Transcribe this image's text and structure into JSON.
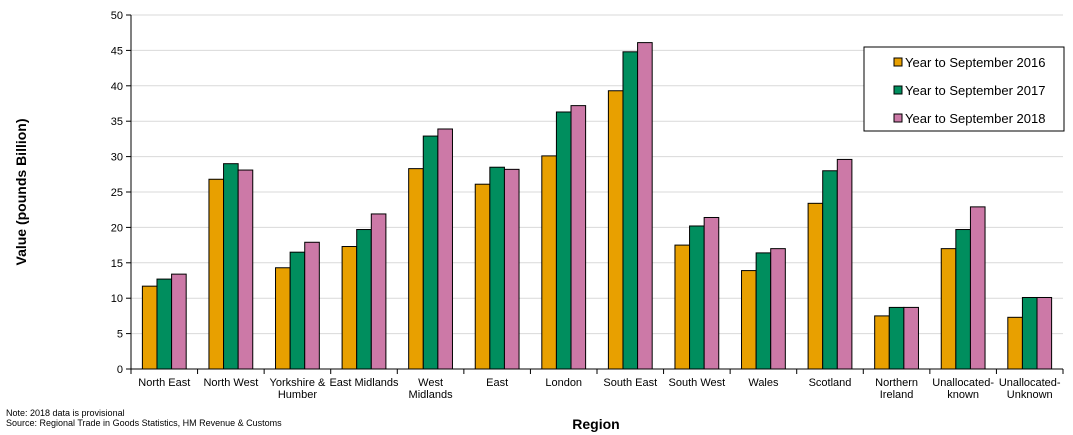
{
  "chart_data": {
    "type": "bar",
    "title": "",
    "xlabel": "Region",
    "ylabel": "Value (pounds Billion)",
    "ylim": [
      0,
      50
    ],
    "yticks": [
      0,
      5,
      10,
      15,
      20,
      25,
      30,
      35,
      40,
      45,
      50
    ],
    "grid": true,
    "legend_position": "top-right",
    "categories": [
      "North East",
      "North West",
      "Yorkshire & Humber",
      "East Midlands",
      "West Midlands",
      "East",
      "London",
      "South East",
      "South West",
      "Wales",
      "Scotland",
      "Northern Ireland",
      "Unallocated-known",
      "Unallocated-Unknown"
    ],
    "category_label_lines": [
      [
        "North East"
      ],
      [
        "North West"
      ],
      [
        "Yorkshire &",
        "Humber"
      ],
      [
        "East Midlands"
      ],
      [
        "West",
        "Midlands"
      ],
      [
        "East"
      ],
      [
        "London"
      ],
      [
        "South East"
      ],
      [
        "South West"
      ],
      [
        "Wales"
      ],
      [
        "Scotland"
      ],
      [
        "Northern",
        "Ireland"
      ],
      [
        "Unallocated-",
        "known"
      ],
      [
        "Unallocated-",
        "Unknown"
      ]
    ],
    "series": [
      {
        "name": "Year to September 2016",
        "color": "#E8A000",
        "values": [
          11.7,
          26.8,
          14.3,
          17.3,
          28.3,
          26.1,
          30.1,
          39.3,
          17.5,
          13.9,
          23.4,
          7.5,
          17.0,
          7.3
        ]
      },
      {
        "name": "Year to September 2017",
        "color": "#008E5E",
        "values": [
          12.7,
          29.0,
          16.5,
          19.7,
          32.9,
          28.5,
          36.3,
          44.8,
          20.2,
          16.4,
          28.0,
          8.7,
          19.7,
          10.1
        ]
      },
      {
        "name": "Year to September 2018",
        "color": "#CC79A7",
        "values": [
          13.4,
          28.1,
          17.9,
          21.9,
          33.9,
          28.2,
          37.2,
          46.1,
          21.4,
          17.0,
          29.6,
          8.7,
          22.9,
          10.1
        ]
      }
    ]
  },
  "notes": {
    "line1": "Note: 2018 data is provisional",
    "line2": "Source: Regional Trade in Goods Statistics, HM Revenue  & Customs"
  }
}
